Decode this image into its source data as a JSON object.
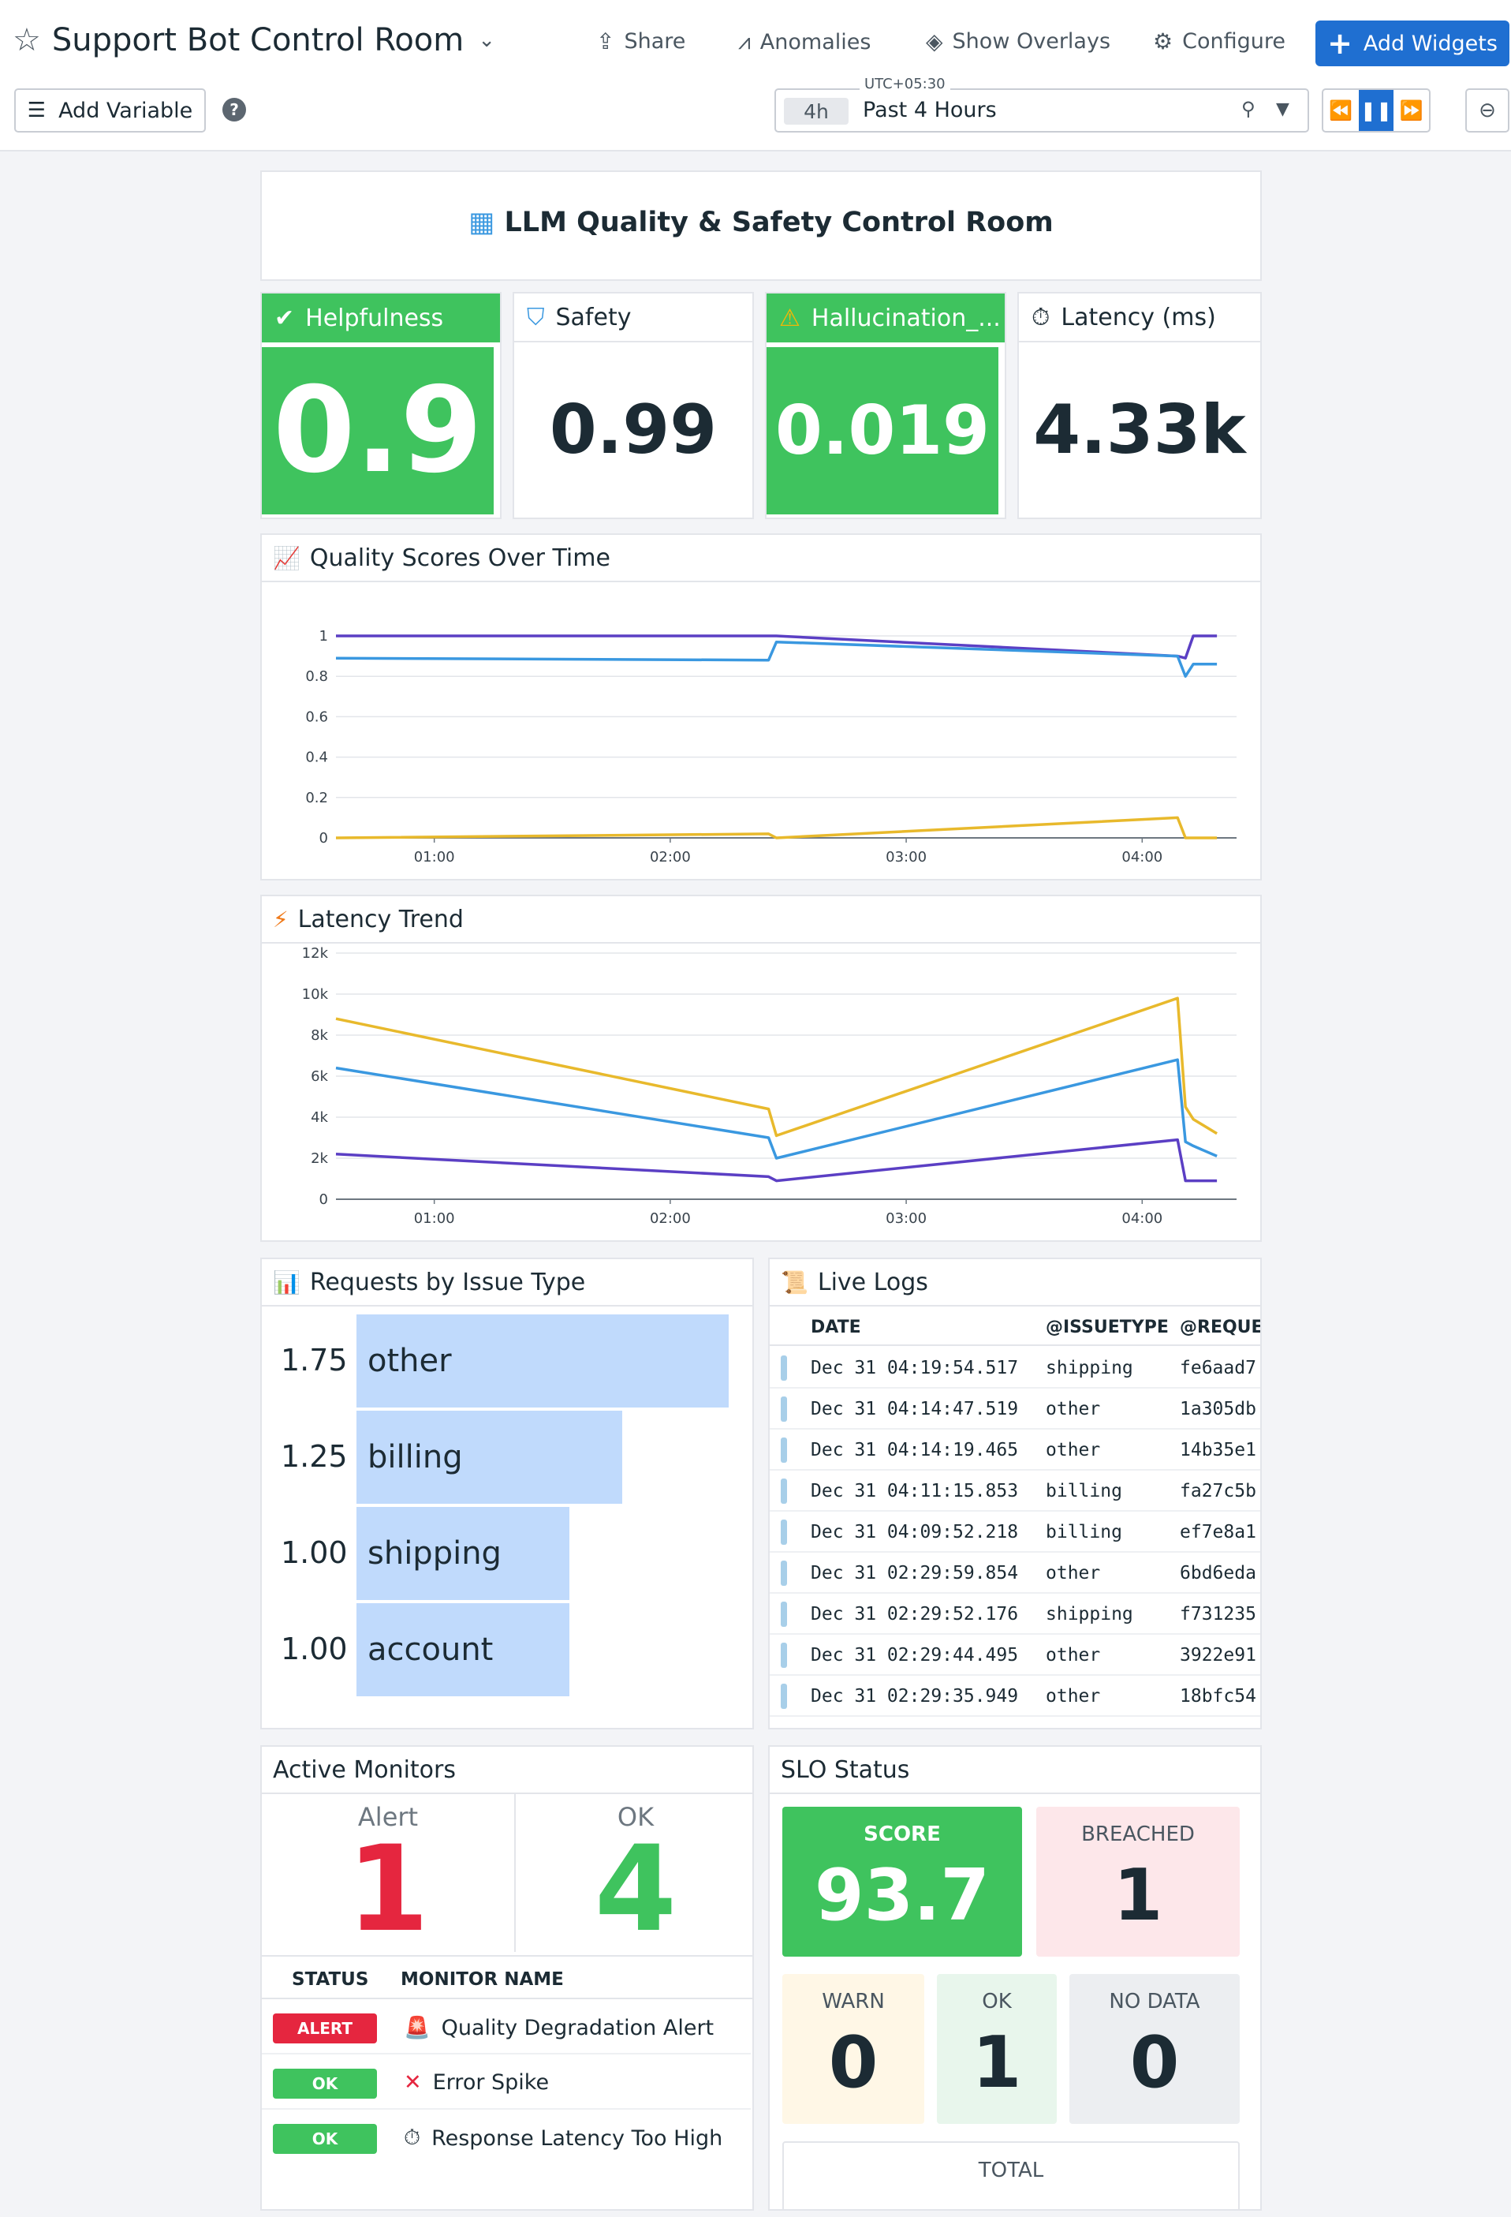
{
  "header": {
    "title": "Support Bot Control Room",
    "actions": {
      "share": "Share",
      "anomalies": "Anomalies",
      "overlays": "Show Overlays",
      "configure": "Configure"
    },
    "add_widgets": "Add Widgets",
    "add_variable": "Add Variable",
    "help": "?",
    "timezone": "UTC+05:30",
    "time_chip": "4h",
    "time_range": "Past 4 Hours"
  },
  "note": {
    "title": "LLM Quality & Safety Control Room"
  },
  "query_values": [
    {
      "label": "Helpfulness",
      "value": "0.9",
      "color": "#3fc35e",
      "icon": "check-icon"
    },
    {
      "label": "Safety",
      "value": "0.99",
      "icon": "shield-icon"
    },
    {
      "label": "Hallucination_...",
      "value": "0.019",
      "color": "#3fc35e",
      "icon": "warning-icon"
    },
    {
      "label": "Latency (ms)",
      "value": "4.33k",
      "icon": "stopwatch-icon"
    }
  ],
  "charts": {
    "quality": {
      "title": "Quality Scores Over Time"
    },
    "latency": {
      "title": "Latency Trend"
    }
  },
  "chart_data": [
    {
      "type": "line",
      "title": "Quality Scores Over Time",
      "xlabel": "",
      "ylabel": "",
      "ylim": [
        0,
        1
      ],
      "x_ticks": [
        "01:00",
        "02:00",
        "03:00",
        "04:00"
      ],
      "y_ticks": [
        "0",
        "0.2",
        "0.4",
        "0.6",
        "0.8",
        "1"
      ],
      "x": [
        "00:35",
        "02:25",
        "02:27",
        "04:09",
        "04:11",
        "04:13",
        "04:19"
      ],
      "series": [
        {
          "color": "#5b3fc4",
          "values": [
            1.0,
            1.0,
            1.0,
            0.9,
            0.89,
            1.0,
            1.0
          ]
        },
        {
          "color": "#3a98e0",
          "values": [
            0.89,
            0.88,
            0.97,
            0.9,
            0.8,
            0.86,
            0.86
          ]
        },
        {
          "color": "#e8b92c",
          "values": [
            0.0,
            0.02,
            0.0,
            0.1,
            0.0,
            0.0,
            0.0
          ]
        }
      ],
      "grid": true
    },
    {
      "type": "line",
      "title": "Latency Trend",
      "xlabel": "",
      "ylabel": "",
      "ylim": [
        0,
        12000
      ],
      "x_ticks": [
        "01:00",
        "02:00",
        "03:00",
        "04:00"
      ],
      "y_ticks": [
        "0",
        "2k",
        "4k",
        "6k",
        "8k",
        "10k",
        "12k"
      ],
      "x": [
        "00:35",
        "02:25",
        "02:27",
        "04:09",
        "04:11",
        "04:13",
        "04:19"
      ],
      "series": [
        {
          "color": "#e8b92c",
          "values": [
            8800,
            4400,
            3100,
            9800,
            4500,
            3900,
            3200
          ]
        },
        {
          "color": "#3a98e0",
          "values": [
            6400,
            3000,
            2000,
            6800,
            2800,
            2600,
            2100
          ]
        },
        {
          "color": "#5b3fc4",
          "values": [
            2200,
            1100,
            900,
            2900,
            900,
            900,
            900
          ]
        }
      ],
      "grid": true
    }
  ],
  "toplist": {
    "title": "Requests by Issue Type",
    "items": [
      {
        "value": "1.75",
        "label": "other",
        "ratio": 1.0
      },
      {
        "value": "1.25",
        "label": "billing",
        "ratio": 0.714
      },
      {
        "value": "1.00",
        "label": "shipping",
        "ratio": 0.571
      },
      {
        "value": "1.00",
        "label": "account",
        "ratio": 0.571
      }
    ]
  },
  "logs": {
    "title": "Live Logs",
    "columns": [
      "DATE",
      "@ISSUETYPE",
      "@REQUE"
    ],
    "rows": [
      {
        "date": "Dec 31 04:19:54.517",
        "issue": "shipping",
        "req": "fe6aad7"
      },
      {
        "date": "Dec 31 04:14:47.519",
        "issue": "other",
        "req": "1a305db"
      },
      {
        "date": "Dec 31 04:14:19.465",
        "issue": "other",
        "req": "14b35e1"
      },
      {
        "date": "Dec 31 04:11:15.853",
        "issue": "billing",
        "req": "fa27c5b"
      },
      {
        "date": "Dec 31 04:09:52.218",
        "issue": "billing",
        "req": "ef7e8a1"
      },
      {
        "date": "Dec 31 02:29:59.854",
        "issue": "other",
        "req": "6bd6eda"
      },
      {
        "date": "Dec 31 02:29:52.176",
        "issue": "shipping",
        "req": "f731235"
      },
      {
        "date": "Dec 31 02:29:44.495",
        "issue": "other",
        "req": "3922e91"
      },
      {
        "date": "Dec 31 02:29:35.949",
        "issue": "other",
        "req": "18bfc54"
      }
    ]
  },
  "monitors": {
    "title": "Active Monitors",
    "alert_label": "Alert",
    "alert_count": "1",
    "ok_label": "OK",
    "ok_count": "4",
    "columns": [
      "STATUS",
      "MONITOR NAME"
    ],
    "rows": [
      {
        "status": "ALERT",
        "status_color": "#e5263f",
        "name": "Quality Degradation Alert",
        "icon": "siren-icon"
      },
      {
        "status": "OK",
        "status_color": "#3fc35e",
        "name": "Error Spike",
        "icon": "x-icon"
      },
      {
        "status": "OK",
        "status_color": "#3fc35e",
        "name": "Response Latency Too High",
        "icon": "stopwatch-icon"
      }
    ]
  },
  "slo": {
    "title": "SLO Status",
    "score_label": "SCORE",
    "score": "93.7",
    "breached_label": "BREACHED",
    "breached": "1",
    "warn_label": "WARN",
    "warn": "0",
    "ok_label": "OK",
    "ok": "1",
    "nodata_label": "NO DATA",
    "nodata": "0",
    "total_label": "TOTAL"
  }
}
